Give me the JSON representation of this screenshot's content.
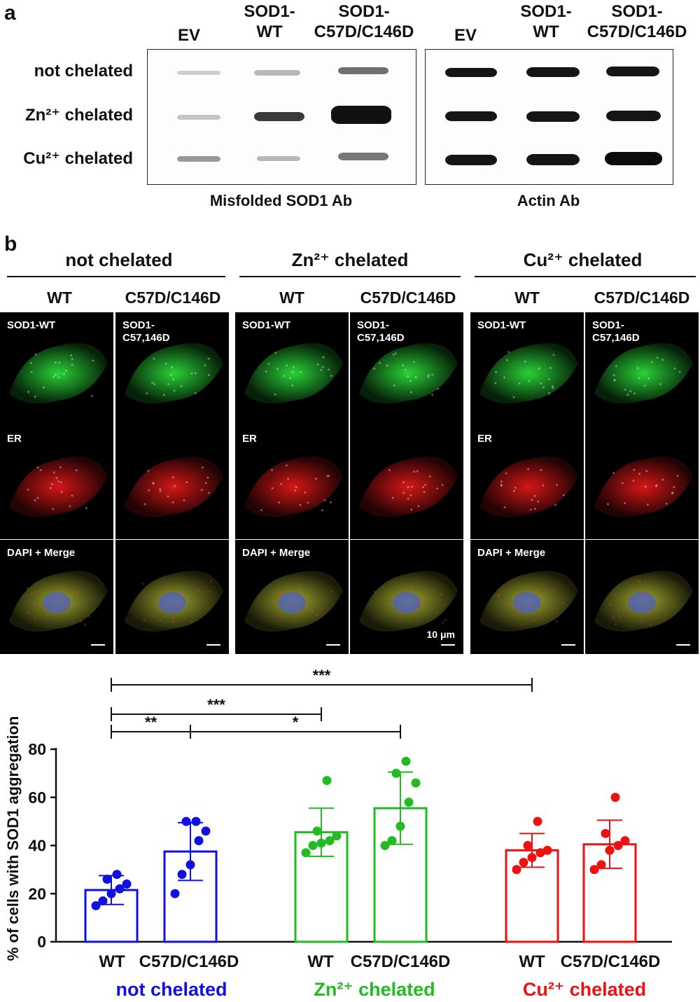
{
  "panel_a": {
    "letter": "a",
    "lane_labels": [
      "EV",
      "SOD1-\nWT",
      "SOD1-\nC57D/C146D"
    ],
    "row_labels": [
      "not chelated",
      "Zn²⁺ chelated",
      "Cu²⁺ chelated"
    ],
    "blot_captions": [
      "Misfolded SOD1 Ab",
      "Actin Ab"
    ]
  },
  "panel_b": {
    "letter": "b",
    "groups": [
      "not chelated",
      "Zn²⁺ chelated",
      "Cu²⁺ chelated"
    ],
    "sub_labels": [
      "WT",
      "C57D/C146D"
    ],
    "tile_labels": {
      "sod_wt": "SOD1-WT",
      "sod_mut": "SOD1-\nC57,146D",
      "er": "ER",
      "merge": "DAPI +  Merge"
    },
    "scale_label": "10 μm"
  },
  "chart_data": {
    "type": "bar",
    "ylabel": "% of cells with SOD1 aggregation",
    "ylim": [
      0,
      80
    ],
    "yticks": [
      0,
      20,
      40,
      60,
      80
    ],
    "categories": [
      "WT",
      "C57D/C146D",
      "WT",
      "C57D/C146D",
      "WT",
      "C57D/C146D"
    ],
    "groups": [
      {
        "name": "not chelated",
        "color": "#1010e0"
      },
      {
        "name": "Zn²⁺ chelated",
        "color": "#22bb22"
      },
      {
        "name": "Cu²⁺ chelated",
        "color": "#ee1111"
      }
    ],
    "bars": [
      {
        "group": 0,
        "mean": 21.5,
        "sd": 6,
        "points": [
          15,
          17,
          20,
          22,
          24,
          26,
          28
        ]
      },
      {
        "group": 0,
        "mean": 37.5,
        "sd": 12,
        "points": [
          20,
          28,
          32,
          42,
          46,
          50,
          50
        ]
      },
      {
        "group": 1,
        "mean": 45.5,
        "sd": 10,
        "points": [
          37,
          40,
          41,
          42,
          44,
          46,
          67
        ]
      },
      {
        "group": 1,
        "mean": 55.5,
        "sd": 15,
        "points": [
          40,
          42,
          48,
          58,
          66,
          70,
          75
        ]
      },
      {
        "group": 2,
        "mean": 38,
        "sd": 7,
        "points": [
          30,
          33,
          35,
          37,
          38,
          40,
          50
        ]
      },
      {
        "group": 2,
        "mean": 40.5,
        "sd": 10,
        "points": [
          30,
          32,
          38,
          40,
          42,
          45,
          60
        ]
      }
    ],
    "significance": [
      {
        "from": 0,
        "to": 1,
        "label": "**"
      },
      {
        "from": 1,
        "to": 3,
        "label": "*"
      },
      {
        "from": 0,
        "to": 2,
        "label": "***"
      },
      {
        "from": 0,
        "to": 4,
        "label": "***"
      }
    ]
  }
}
